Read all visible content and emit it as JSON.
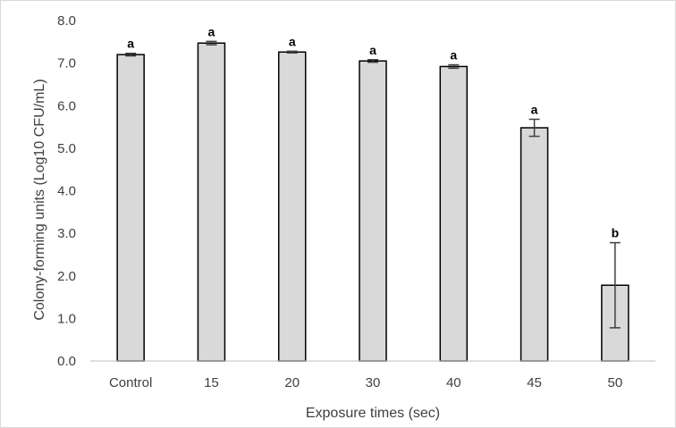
{
  "chart_data": {
    "type": "bar",
    "categories": [
      "Control",
      "15",
      "20",
      "30",
      "40",
      "45",
      "50"
    ],
    "values": [
      7.2,
      7.47,
      7.26,
      7.05,
      6.92,
      5.48,
      1.78
    ],
    "errors": [
      0.03,
      0.04,
      0.02,
      0.03,
      0.04,
      0.2,
      1.0
    ],
    "significance": [
      "a",
      "a",
      "a",
      "a",
      "a",
      "a",
      "b"
    ],
    "title": "",
    "xlabel": "Exposure times (sec)",
    "ylabel": "Colony-forming units (Log10 CFU/mL)",
    "ylim": [
      0,
      8
    ],
    "yticks": [
      "0.0",
      "1.0",
      "2.0",
      "3.0",
      "4.0",
      "5.0",
      "6.0",
      "7.0",
      "8.0"
    ],
    "grid": false,
    "legend": "none",
    "bar_fill": "#d9d9d9",
    "bar_stroke": "#000000",
    "error_bar_color": "#404040",
    "axis_color": "#bfbfbf"
  }
}
